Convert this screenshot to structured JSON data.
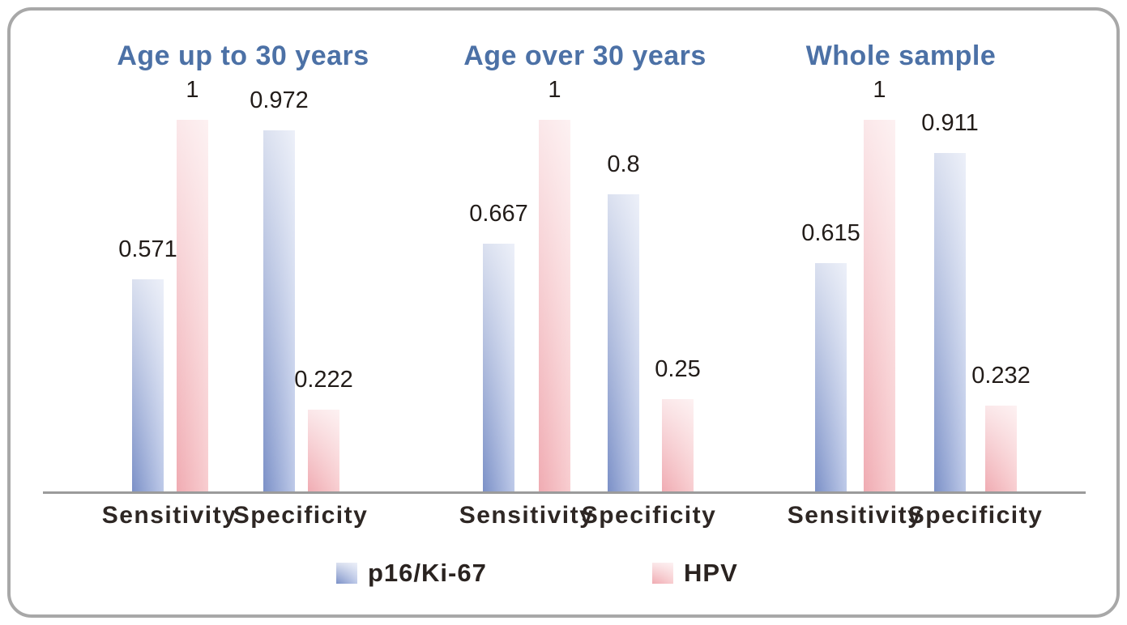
{
  "colors": {
    "title_blue": "#4c71a6",
    "bar_blue_dark": "#7b90c7",
    "bar_blue_light": "#bdc9e8",
    "bar_pink_dark": "#f0abb2",
    "bar_pink_light": "#f8cdd0",
    "axis_gray": "#9b9b9b",
    "frame_gray": "#a8a8a8",
    "value_text": "#221c19"
  },
  "chart_data": {
    "type": "bar",
    "ylim": [
      0,
      1
    ],
    "grid": false,
    "legend_position": "bottom",
    "series_names": [
      "p16/Ki-67",
      "HPV"
    ],
    "panels": [
      {
        "title": "Age up to 30 years",
        "categories": [
          "Sensitivity",
          "Specificity"
        ],
        "bars": [
          {
            "series": "p16/Ki-67",
            "category": "Sensitivity",
            "value": 0.571,
            "label": "0.571"
          },
          {
            "series": "HPV",
            "category": "Sensitivity",
            "value": 1,
            "label": "1"
          },
          {
            "series": "p16/Ki-67",
            "category": "Specificity",
            "value": 0.972,
            "label": "0.972"
          },
          {
            "series": "HPV",
            "category": "Specificity",
            "value": 0.222,
            "label": "0.222"
          }
        ]
      },
      {
        "title": "Age over 30 years",
        "categories": [
          "Sensitivity",
          "Specificity"
        ],
        "bars": [
          {
            "series": "p16/Ki-67",
            "category": "Sensitivity",
            "value": 0.667,
            "label": "0.667"
          },
          {
            "series": "HPV",
            "category": "Sensitivity",
            "value": 1,
            "label": "1"
          },
          {
            "series": "p16/Ki-67",
            "category": "Specificity",
            "value": 0.8,
            "label": "0.8"
          },
          {
            "series": "HPV",
            "category": "Specificity",
            "value": 0.25,
            "label": "0.25"
          }
        ]
      },
      {
        "title": "Whole sample",
        "categories": [
          "Sensitivity",
          "Specificity"
        ],
        "bars": [
          {
            "series": "p16/Ki-67",
            "category": "Sensitivity",
            "value": 0.615,
            "label": "0.615"
          },
          {
            "series": "HPV",
            "category": "Sensitivity",
            "value": 1,
            "label": "1"
          },
          {
            "series": "p16/Ki-67",
            "category": "Specificity",
            "value": 0.911,
            "label": "0.911"
          },
          {
            "series": "HPV",
            "category": "Specificity",
            "value": 0.232,
            "label": "0.232"
          }
        ]
      }
    ],
    "legend": [
      {
        "label": "p16/Ki-67",
        "series_color": "blue"
      },
      {
        "label": "HPV",
        "series_color": "pink"
      }
    ]
  }
}
